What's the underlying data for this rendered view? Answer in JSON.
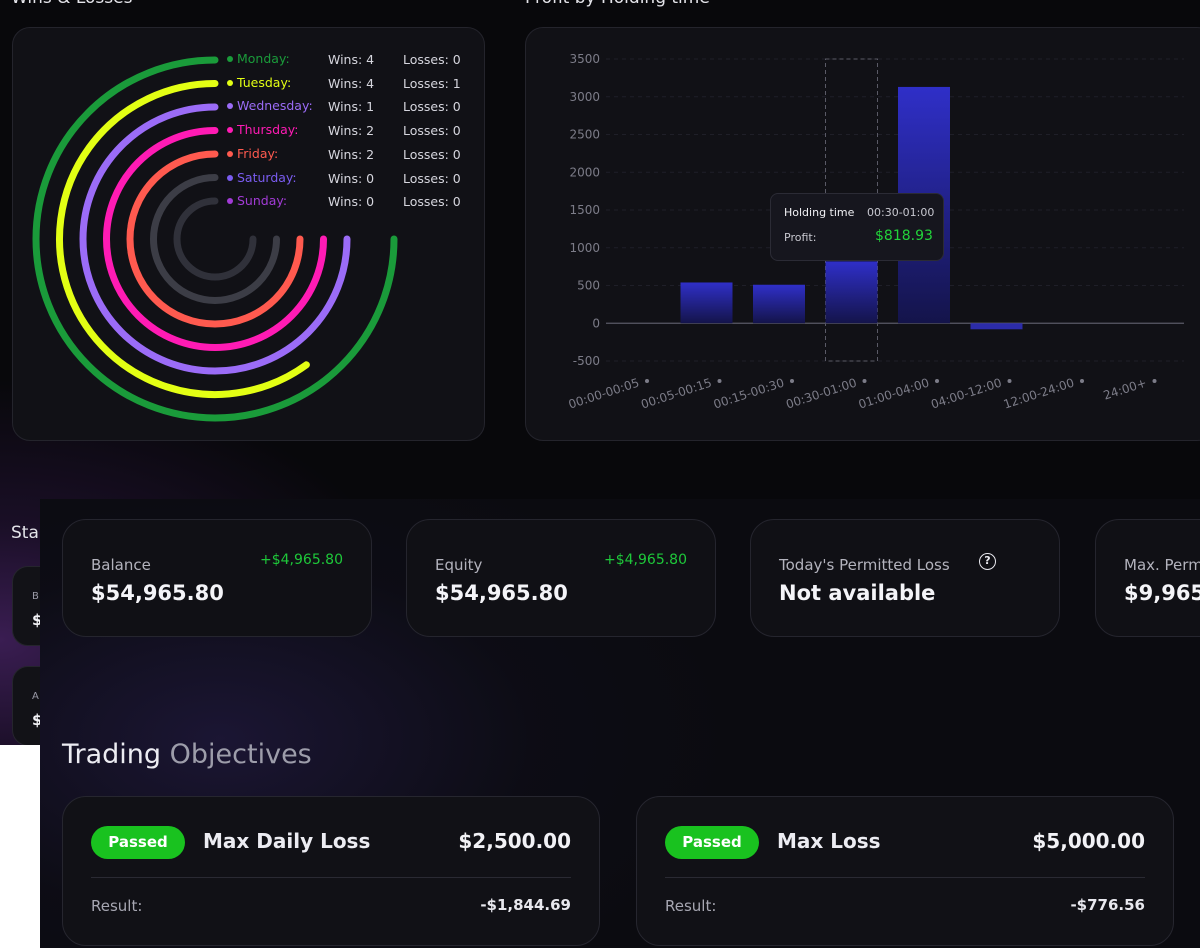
{
  "colors": {
    "monday": "#0f8a2b",
    "tuesday": "#e3ff14",
    "wednesday": "#9b6cf7",
    "thursday": "#ff1bb4",
    "friday": "#ff5a4f",
    "saturday": "#3c3d46",
    "sunday": "#2e2f38",
    "bar": "#2f2fc8",
    "positive": "#1ec83a",
    "passed": "#19c21f"
  },
  "wins_losses": {
    "title": "Wins & Losses",
    "days": [
      {
        "day": "Monday:",
        "wins": "Wins: 4",
        "losses": "Losses: 0",
        "color": "#1a9b3a",
        "dot": "#1a9b3a",
        "fraction": 0.75
      },
      {
        "day": "Tuesday:",
        "wins": "Wins: 4",
        "losses": "Losses: 1",
        "color": "#e3ff14",
        "dot": "#e3ff14",
        "fraction": 0.6
      },
      {
        "day": "Wednesday:",
        "wins": "Wins: 1",
        "losses": "Losses: 0",
        "color": "#9b6cf7",
        "dot": "#9b6cf7",
        "fraction": 0.75
      },
      {
        "day": "Thursday:",
        "wins": "Wins: 2",
        "losses": "Losses: 0",
        "color": "#ff1bb4",
        "dot": "#ff1bb4",
        "fraction": 0.75
      },
      {
        "day": "Friday:",
        "wins": "Wins: 2",
        "losses": "Losses: 0",
        "color": "#ff5a4f",
        "dot": "#ff5a4f",
        "fraction": 0.75
      },
      {
        "day": "Saturday:",
        "wins": "Wins: 0",
        "losses": "Losses: 0",
        "color": "#3c3d46",
        "dot": "#7a5cf0",
        "fraction": 0.75
      },
      {
        "day": "Sunday:",
        "wins": "Wins: 0",
        "losses": "Losses: 0",
        "color": "#30313a",
        "dot": "#a23bd6",
        "fraction": 0.75
      }
    ]
  },
  "profit_by_holding_time": {
    "title": "Profit by Holding time",
    "tooltip": {
      "holding_label": "Holding time",
      "holding_value": "00:30-01:00",
      "profit_label": "Profit:",
      "profit_value": "$818.93"
    }
  },
  "chart_data": {
    "type": "bar",
    "title": "Profit by Holding time",
    "categories": [
      "00:00-00:05",
      "00:05-00:15",
      "00:15-00:30",
      "00:30-01:00",
      "01:00-04:00",
      "04:00-12:00",
      "12:00-24:00",
      "24:00+"
    ],
    "values": [
      0,
      540,
      510,
      818.93,
      3130,
      -80,
      0,
      0
    ],
    "yticks": [
      3500,
      3000,
      2500,
      2000,
      1500,
      1000,
      500,
      0,
      -500
    ],
    "ylim": [
      -500,
      3500
    ],
    "highlight_index": 3,
    "xlabel": "",
    "ylabel": "",
    "grid": true
  },
  "stats_peek": {
    "title": "Sta",
    "cards": [
      {
        "label": "B",
        "value": "$"
      },
      {
        "label": "A",
        "value": "$"
      }
    ]
  },
  "stats": [
    {
      "label": "Balance",
      "change": "+$4,965.80",
      "value": "$54,965.80"
    },
    {
      "label": "Equity",
      "change": "+$4,965.80",
      "value": "$54,965.80"
    },
    {
      "label": "Today's Permitted Loss",
      "help": "?",
      "value": "Not available"
    },
    {
      "label": "Max. Perm",
      "value": "$9,965"
    }
  ],
  "objectives": {
    "title_part1": "Trading",
    "title_part2": "Objectives",
    "items": [
      {
        "badge": "Passed",
        "name": "Max Daily Loss",
        "amount": "$2,500.00",
        "result_label": "Result:",
        "result_value": "-$1,844.69"
      },
      {
        "badge": "Passed",
        "name": "Max Loss",
        "amount": "$5,000.00",
        "result_label": "Result:",
        "result_value": "-$776.56"
      }
    ]
  }
}
